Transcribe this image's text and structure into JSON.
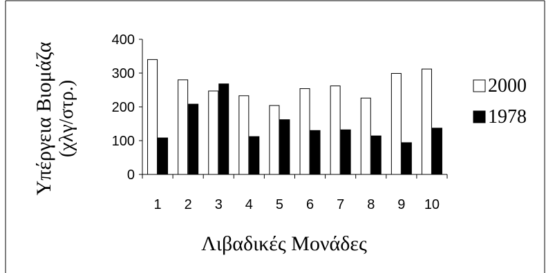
{
  "chart_data": {
    "type": "bar",
    "title": "",
    "xlabel": "Λιβαδικές Μονάδες",
    "ylabel_line1": "Υπέργεια Βιομάζα",
    "ylabel_line2": "(χλγ/στρ.)",
    "categories": [
      "1",
      "2",
      "3",
      "4",
      "5",
      "6",
      "7",
      "8",
      "9",
      "10"
    ],
    "ylim": [
      0,
      400
    ],
    "yticks": [
      "0",
      "100",
      "200",
      "300",
      "400"
    ],
    "grid": false,
    "legend_position": "right",
    "series": [
      {
        "name": "2000",
        "values": [
          340,
          280,
          247,
          233,
          204,
          254,
          262,
          226,
          299,
          312
        ],
        "color": "#ffffff"
      },
      {
        "name": "1978",
        "values": [
          108,
          208,
          268,
          112,
          162,
          130,
          132,
          114,
          94,
          137
        ],
        "color": "#000000"
      }
    ]
  }
}
